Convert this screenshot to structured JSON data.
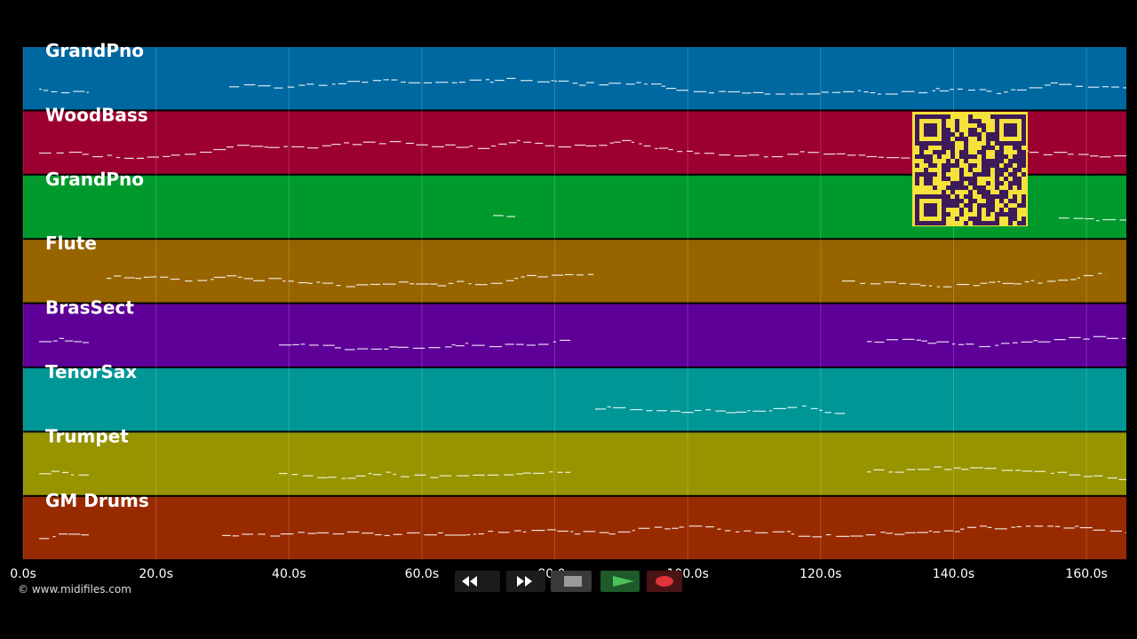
{
  "tracks": [
    {
      "name": "GrandPno",
      "color": "#0068a0"
    },
    {
      "name": "WoodBass",
      "color": "#9b0030"
    },
    {
      "name": "GrandPno",
      "color": "#009a2c"
    },
    {
      "name": "Flute",
      "color": "#976400"
    },
    {
      "name": "BrasSect",
      "color": "#5e0097"
    },
    {
      "name": "TenorSax",
      "color": "#009696"
    },
    {
      "name": "Trumpet",
      "color": "#979400"
    },
    {
      "name": "GM Drums",
      "color": "#982a00"
    }
  ],
  "timeline": {
    "xlim": [
      0,
      166
    ],
    "ticks": [
      {
        "value": 0,
        "label": "0.0s"
      },
      {
        "value": 20,
        "label": "20.0s"
      },
      {
        "value": 40,
        "label": "40.0s"
      },
      {
        "value": 60,
        "label": "60.0s"
      },
      {
        "value": 80,
        "label": "80.0s"
      },
      {
        "value": 100,
        "label": "100.0s"
      },
      {
        "value": 120,
        "label": "120.0s"
      },
      {
        "value": 140,
        "label": "140.0s"
      },
      {
        "value": 160,
        "label": "160.0s"
      }
    ]
  },
  "credit": "© www.midifiles.com"
}
